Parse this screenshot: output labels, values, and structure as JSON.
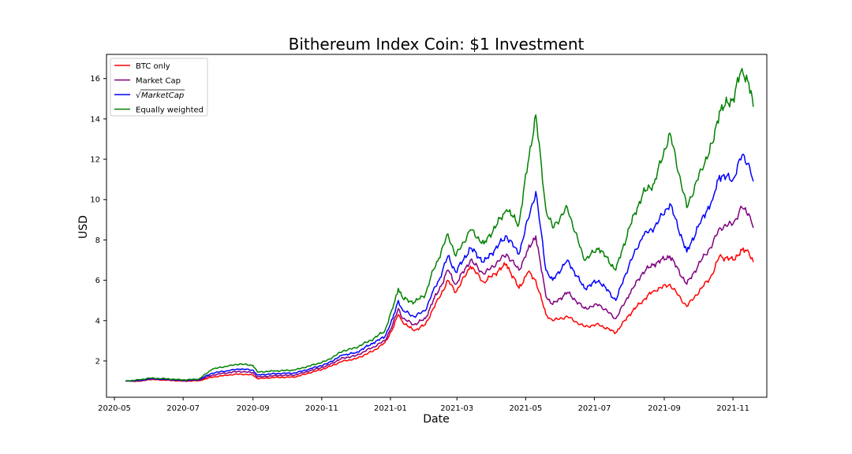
{
  "chart_data": {
    "type": "line",
    "title": "Bithereum Index Coin: $1 Investment",
    "xlabel": "Date",
    "ylabel": "USD",
    "xlim": [
      "2020-04-24",
      "2021-12-01"
    ],
    "ylim": [
      0.2,
      17.2
    ],
    "x_ticks": [
      "2020-05",
      "2020-07",
      "2020-09",
      "2020-11",
      "2021-01",
      "2021-03",
      "2021-05",
      "2021-07",
      "2021-09",
      "2021-11"
    ],
    "y_ticks": [
      2,
      4,
      6,
      8,
      10,
      12,
      14,
      16
    ],
    "grid": false,
    "legend_position": "upper-left",
    "series": [
      {
        "name": "BTC only",
        "color": "#ff0000",
        "points": [
          [
            "2020-05-11",
            1.0
          ],
          [
            "2020-05-25",
            1.0
          ],
          [
            "2020-06-01",
            1.08
          ],
          [
            "2020-06-15",
            1.05
          ],
          [
            "2020-07-01",
            1.0
          ],
          [
            "2020-07-15",
            1.02
          ],
          [
            "2020-07-27",
            1.2
          ],
          [
            "2020-08-10",
            1.3
          ],
          [
            "2020-08-20",
            1.35
          ],
          [
            "2020-09-01",
            1.3
          ],
          [
            "2020-09-05",
            1.12
          ],
          [
            "2020-09-20",
            1.18
          ],
          [
            "2020-10-08",
            1.2
          ],
          [
            "2020-10-21",
            1.4
          ],
          [
            "2020-11-05",
            1.65
          ],
          [
            "2020-11-20",
            2.0
          ],
          [
            "2020-12-01",
            2.1
          ],
          [
            "2020-12-17",
            2.5
          ],
          [
            "2020-12-27",
            2.9
          ],
          [
            "2021-01-03",
            3.6
          ],
          [
            "2021-01-08",
            4.3
          ],
          [
            "2021-01-12",
            3.9
          ],
          [
            "2021-01-22",
            3.5
          ],
          [
            "2021-02-01",
            3.8
          ],
          [
            "2021-02-08",
            4.6
          ],
          [
            "2021-02-13",
            5.1
          ],
          [
            "2021-02-21",
            6.0
          ],
          [
            "2021-02-28",
            5.4
          ],
          [
            "2021-03-13",
            6.7
          ],
          [
            "2021-03-25",
            5.9
          ],
          [
            "2021-04-14",
            6.8
          ],
          [
            "2021-04-25",
            5.6
          ],
          [
            "2021-05-03",
            6.4
          ],
          [
            "2021-05-10",
            6.0
          ],
          [
            "2021-05-19",
            4.3
          ],
          [
            "2021-05-25",
            4.0
          ],
          [
            "2021-06-07",
            4.2
          ],
          [
            "2021-06-22",
            3.7
          ],
          [
            "2021-07-05",
            3.8
          ],
          [
            "2021-07-20",
            3.4
          ],
          [
            "2021-08-01",
            4.3
          ],
          [
            "2021-08-13",
            5.0
          ],
          [
            "2021-08-23",
            5.5
          ],
          [
            "2021-09-06",
            5.8
          ],
          [
            "2021-09-21",
            4.7
          ],
          [
            "2021-10-04",
            5.6
          ],
          [
            "2021-10-14",
            6.3
          ],
          [
            "2021-10-20",
            7.2
          ],
          [
            "2021-11-01",
            7.0
          ],
          [
            "2021-11-09",
            7.5
          ],
          [
            "2021-11-15",
            7.4
          ],
          [
            "2021-11-19",
            6.9
          ]
        ]
      },
      {
        "name": "Market Cap",
        "color": "#800080",
        "points": [
          [
            "2020-05-11",
            1.0
          ],
          [
            "2020-05-25",
            1.02
          ],
          [
            "2020-06-01",
            1.1
          ],
          [
            "2020-06-15",
            1.08
          ],
          [
            "2020-07-01",
            1.02
          ],
          [
            "2020-07-15",
            1.05
          ],
          [
            "2020-07-27",
            1.3
          ],
          [
            "2020-08-10",
            1.42
          ],
          [
            "2020-08-20",
            1.48
          ],
          [
            "2020-09-01",
            1.42
          ],
          [
            "2020-09-05",
            1.2
          ],
          [
            "2020-09-20",
            1.27
          ],
          [
            "2020-10-08",
            1.3
          ],
          [
            "2020-10-21",
            1.5
          ],
          [
            "2020-11-05",
            1.75
          ],
          [
            "2020-11-20",
            2.15
          ],
          [
            "2020-12-01",
            2.25
          ],
          [
            "2020-12-17",
            2.7
          ],
          [
            "2020-12-27",
            3.0
          ],
          [
            "2021-01-03",
            3.8
          ],
          [
            "2021-01-08",
            4.6
          ],
          [
            "2021-01-12",
            4.1
          ],
          [
            "2021-01-22",
            3.8
          ],
          [
            "2021-02-01",
            4.1
          ],
          [
            "2021-02-08",
            5.0
          ],
          [
            "2021-02-13",
            5.5
          ],
          [
            "2021-02-21",
            6.5
          ],
          [
            "2021-02-28",
            5.8
          ],
          [
            "2021-03-13",
            7.0
          ],
          [
            "2021-03-25",
            6.3
          ],
          [
            "2021-04-14",
            7.3
          ],
          [
            "2021-04-25",
            6.5
          ],
          [
            "2021-05-03",
            7.5
          ],
          [
            "2021-05-10",
            8.2
          ],
          [
            "2021-05-19",
            5.2
          ],
          [
            "2021-05-25",
            4.8
          ],
          [
            "2021-06-07",
            5.4
          ],
          [
            "2021-06-22",
            4.6
          ],
          [
            "2021-07-05",
            4.8
          ],
          [
            "2021-07-20",
            4.1
          ],
          [
            "2021-08-01",
            5.3
          ],
          [
            "2021-08-13",
            6.4
          ],
          [
            "2021-08-23",
            6.8
          ],
          [
            "2021-09-06",
            7.2
          ],
          [
            "2021-09-21",
            5.8
          ],
          [
            "2021-10-04",
            7.0
          ],
          [
            "2021-10-14",
            7.8
          ],
          [
            "2021-10-20",
            8.6
          ],
          [
            "2021-11-01",
            8.8
          ],
          [
            "2021-11-09",
            9.6
          ],
          [
            "2021-11-15",
            9.3
          ],
          [
            "2021-11-19",
            8.6
          ]
        ]
      },
      {
        "name": "√MarketCap",
        "color": "#0000ff",
        "points": [
          [
            "2020-05-11",
            1.0
          ],
          [
            "2020-05-25",
            1.05
          ],
          [
            "2020-06-01",
            1.12
          ],
          [
            "2020-06-15",
            1.1
          ],
          [
            "2020-07-01",
            1.04
          ],
          [
            "2020-07-15",
            1.08
          ],
          [
            "2020-07-27",
            1.4
          ],
          [
            "2020-08-10",
            1.52
          ],
          [
            "2020-08-20",
            1.6
          ],
          [
            "2020-09-01",
            1.55
          ],
          [
            "2020-09-05",
            1.3
          ],
          [
            "2020-09-20",
            1.37
          ],
          [
            "2020-10-08",
            1.4
          ],
          [
            "2020-10-21",
            1.6
          ],
          [
            "2020-11-05",
            1.85
          ],
          [
            "2020-11-20",
            2.3
          ],
          [
            "2020-12-01",
            2.4
          ],
          [
            "2020-12-17",
            2.9
          ],
          [
            "2020-12-27",
            3.2
          ],
          [
            "2021-01-03",
            4.1
          ],
          [
            "2021-01-08",
            5.0
          ],
          [
            "2021-01-12",
            4.5
          ],
          [
            "2021-01-22",
            4.2
          ],
          [
            "2021-02-01",
            4.5
          ],
          [
            "2021-02-08",
            5.5
          ],
          [
            "2021-02-13",
            6.0
          ],
          [
            "2021-02-21",
            7.2
          ],
          [
            "2021-02-28",
            6.4
          ],
          [
            "2021-03-13",
            7.6
          ],
          [
            "2021-03-25",
            6.9
          ],
          [
            "2021-04-14",
            8.2
          ],
          [
            "2021-04-25",
            7.3
          ],
          [
            "2021-05-03",
            9.0
          ],
          [
            "2021-05-10",
            10.4
          ],
          [
            "2021-05-19",
            6.5
          ],
          [
            "2021-05-25",
            6.0
          ],
          [
            "2021-06-07",
            7.0
          ],
          [
            "2021-06-22",
            5.6
          ],
          [
            "2021-07-05",
            6.0
          ],
          [
            "2021-07-20",
            5.0
          ],
          [
            "2021-08-01",
            6.8
          ],
          [
            "2021-08-13",
            8.2
          ],
          [
            "2021-08-23",
            8.6
          ],
          [
            "2021-09-06",
            9.8
          ],
          [
            "2021-09-21",
            7.4
          ],
          [
            "2021-10-04",
            9.0
          ],
          [
            "2021-10-14",
            10.0
          ],
          [
            "2021-10-20",
            11.2
          ],
          [
            "2021-11-01",
            11.0
          ],
          [
            "2021-11-09",
            12.2
          ],
          [
            "2021-11-15",
            11.8
          ],
          [
            "2021-11-19",
            10.9
          ]
        ]
      },
      {
        "name": "Equally weighted",
        "color": "#008000",
        "points": [
          [
            "2020-05-11",
            1.0
          ],
          [
            "2020-05-25",
            1.08
          ],
          [
            "2020-06-01",
            1.15
          ],
          [
            "2020-06-15",
            1.12
          ],
          [
            "2020-07-01",
            1.06
          ],
          [
            "2020-07-15",
            1.1
          ],
          [
            "2020-07-27",
            1.6
          ],
          [
            "2020-08-10",
            1.75
          ],
          [
            "2020-08-20",
            1.85
          ],
          [
            "2020-09-01",
            1.78
          ],
          [
            "2020-09-05",
            1.45
          ],
          [
            "2020-09-20",
            1.5
          ],
          [
            "2020-10-08",
            1.55
          ],
          [
            "2020-10-21",
            1.75
          ],
          [
            "2020-11-05",
            2.0
          ],
          [
            "2020-11-20",
            2.5
          ],
          [
            "2020-12-01",
            2.65
          ],
          [
            "2020-12-17",
            3.1
          ],
          [
            "2020-12-27",
            3.5
          ],
          [
            "2021-01-03",
            4.6
          ],
          [
            "2021-01-08",
            5.6
          ],
          [
            "2021-01-12",
            5.1
          ],
          [
            "2021-01-22",
            4.9
          ],
          [
            "2021-02-01",
            5.3
          ],
          [
            "2021-02-08",
            6.5
          ],
          [
            "2021-02-13",
            7.1
          ],
          [
            "2021-02-21",
            8.3
          ],
          [
            "2021-02-28",
            7.2
          ],
          [
            "2021-03-13",
            8.5
          ],
          [
            "2021-03-25",
            7.8
          ],
          [
            "2021-04-14",
            9.5
          ],
          [
            "2021-04-25",
            8.8
          ],
          [
            "2021-05-03",
            11.8
          ],
          [
            "2021-05-10",
            14.2
          ],
          [
            "2021-05-19",
            9.5
          ],
          [
            "2021-05-25",
            8.6
          ],
          [
            "2021-06-07",
            9.6
          ],
          [
            "2021-06-22",
            7.0
          ],
          [
            "2021-07-05",
            7.6
          ],
          [
            "2021-07-20",
            6.5
          ],
          [
            "2021-08-01",
            8.6
          ],
          [
            "2021-08-13",
            10.3
          ],
          [
            "2021-08-23",
            10.8
          ],
          [
            "2021-09-06",
            13.3
          ],
          [
            "2021-09-21",
            9.6
          ],
          [
            "2021-10-04",
            11.5
          ],
          [
            "2021-10-14",
            12.8
          ],
          [
            "2021-10-20",
            14.4
          ],
          [
            "2021-11-01",
            15.0
          ],
          [
            "2021-11-09",
            16.5
          ],
          [
            "2021-11-15",
            15.8
          ],
          [
            "2021-11-19",
            14.6
          ]
        ]
      }
    ]
  }
}
